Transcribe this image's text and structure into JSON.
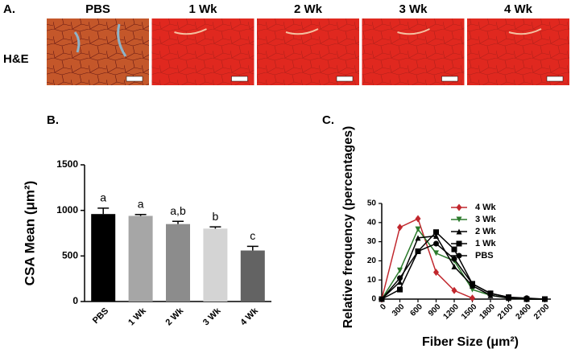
{
  "panel_a": {
    "panel_label": "A.",
    "row_label": "H&E",
    "columns": [
      "PBS",
      "1 Wk",
      "2 Wk",
      "3 Wk",
      "4 Wk"
    ]
  },
  "chart_data": [
    {
      "type": "bar",
      "panel_label": "B.",
      "y_label": "CSA Mean (μm²)",
      "categories": [
        "PBS",
        "1 Wk",
        "2 Wk",
        "3 Wk",
        "4 Wk"
      ],
      "values": [
        960,
        940,
        850,
        800,
        560
      ],
      "errors": [
        65,
        15,
        30,
        20,
        45
      ],
      "annotations": [
        "a",
        "a",
        "a,b",
        "b",
        "c"
      ],
      "colors": [
        "#000000",
        "#a6a6a6",
        "#8c8c8c",
        "#d4d4d4",
        "#636363"
      ],
      "ylim": [
        0,
        1500
      ],
      "yticks": [
        0,
        500,
        1000,
        1500
      ]
    },
    {
      "type": "line",
      "panel_label": "C.",
      "x_label": "Fiber Size (μm²)",
      "y_label": "Relative frequency (percentages)",
      "x": [
        0,
        300,
        600,
        900,
        1200,
        1500,
        1800,
        2100,
        2400,
        2700
      ],
      "series": [
        {
          "name": "4 Wk",
          "color": "#c1272d",
          "marker": "diamond",
          "values": [
            0,
            37.5,
            42,
            14,
            4.5,
            0.5,
            null,
            null,
            null,
            null
          ]
        },
        {
          "name": "3 Wk",
          "color": "#2b7a2b",
          "marker": "triangle-down",
          "values": [
            0,
            15,
            36.5,
            24,
            20,
            5,
            2,
            0.5,
            0,
            0
          ]
        },
        {
          "name": "2 Wk",
          "color": "#000000",
          "marker": "triangle-up",
          "values": [
            0,
            9,
            32,
            33,
            17,
            7,
            2,
            0.5,
            0,
            0
          ]
        },
        {
          "name": "1 Wk",
          "color": "#000000",
          "marker": "square",
          "values": [
            0,
            5,
            25,
            35,
            26,
            8,
            3,
            1,
            0,
            0
          ]
        },
        {
          "name": "PBS",
          "color": "#000000",
          "marker": "circle",
          "values": [
            0,
            11,
            25,
            29,
            21,
            8,
            3,
            1,
            0.5,
            0
          ]
        }
      ],
      "xlim": [
        0,
        2800
      ],
      "ylim": [
        0,
        50
      ],
      "xticks": [
        0,
        300,
        600,
        900,
        1200,
        1500,
        1800,
        2100,
        2400,
        2700
      ],
      "yticks": [
        0,
        10,
        20,
        30,
        40,
        50
      ]
    }
  ]
}
